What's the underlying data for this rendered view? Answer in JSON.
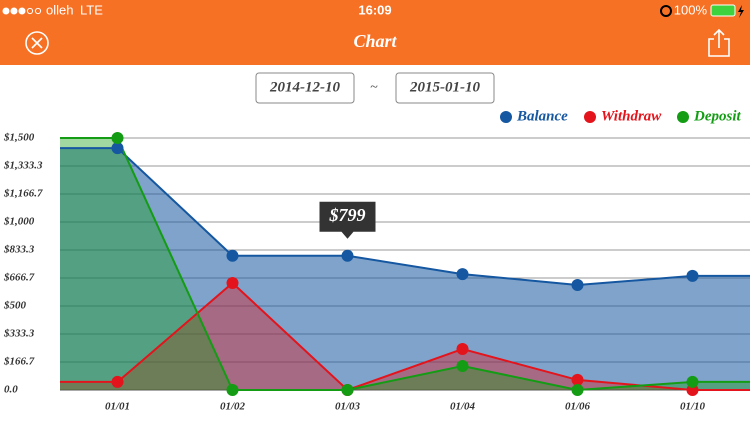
{
  "status_bar": {
    "carrier": "olleh",
    "network": "LTE",
    "time": "16:09",
    "battery": "100%"
  },
  "nav": {
    "title": "Chart"
  },
  "date_range": {
    "start": "2014-12-10",
    "separator": "~",
    "end": "2015-01-10"
  },
  "chart_data": {
    "type": "area",
    "categories": [
      "01/01",
      "01/02",
      "01/03",
      "01/04",
      "01/06",
      "01/10"
    ],
    "series": [
      {
        "name": "Balance",
        "color": "#1557a0",
        "values": [
          1440,
          799,
          799,
          690,
          625,
          679
        ],
        "value_labels": [
          null,
          null,
          "$799",
          null,
          null,
          null
        ]
      },
      {
        "name": "Withdraw",
        "color": "#e3141c",
        "values": [
          48,
          637,
          0,
          244,
          60,
          0
        ]
      },
      {
        "name": "Deposit",
        "color": "#139c14",
        "values": [
          1500,
          0,
          0,
          143,
          0,
          48
        ]
      }
    ],
    "ylim": [
      0,
      1500
    ],
    "yticks": [
      {
        "value": 0,
        "label": "0.0"
      },
      {
        "value": 166.7,
        "label": "$166.7"
      },
      {
        "value": 333.3,
        "label": "$333.3"
      },
      {
        "value": 500,
        "label": "$500"
      },
      {
        "value": 666.7,
        "label": "$666.7"
      },
      {
        "value": 833.3,
        "label": "$833.3"
      },
      {
        "value": 1000,
        "label": "$1,000"
      },
      {
        "value": 1166.7,
        "label": "$1,166.7"
      },
      {
        "value": 1333.3,
        "label": "$1,333.3"
      },
      {
        "value": 1500,
        "label": "$1,500"
      }
    ],
    "grid": true,
    "legend": "top-right"
  }
}
